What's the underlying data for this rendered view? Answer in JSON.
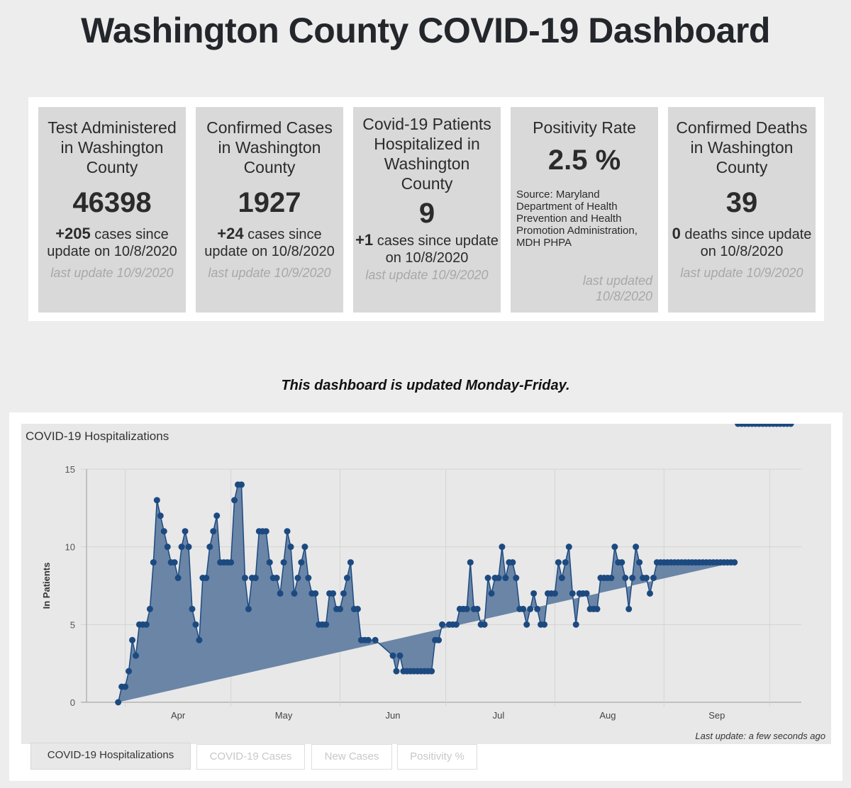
{
  "header": {
    "title": "Washington County COVID-19 Dashboard"
  },
  "cards": [
    {
      "title": "Test Administered in Washington County",
      "value": "46398",
      "delta": "+205",
      "delta_text": " cases since update on 10/8/2020",
      "updated": "last update 10/9/2020"
    },
    {
      "title": "Confirmed Cases in Washington County",
      "value": "1927",
      "delta": "+24",
      "delta_text": " cases since update on 10/8/2020",
      "updated": "last update 10/9/2020"
    },
    {
      "title": "Covid-19 Patients Hospitalized in Washington County",
      "value": "9",
      "delta": "+1",
      "delta_text": " cases since update on 10/8/2020",
      "updated": "last update 10/9/2020"
    },
    {
      "title": "Positivity Rate",
      "value": "2.5 %",
      "source": "Source: Maryland Department of Health Prevention and Health Promotion Administration, MDH PHPA",
      "updated": "last updated 10/8/2020"
    },
    {
      "title": "Confirmed Deaths in Washington County",
      "value": "39",
      "delta": "0",
      "delta_text": " deaths since update on 10/8/2020",
      "updated": "last update 10/9/2020"
    }
  ],
  "subtitle": "This dashboard is updated Monday-Friday.",
  "chart_panel": {
    "last_update": "Last update: a few seconds ago",
    "tabs": [
      {
        "label": "COVID-19 Hospitalizations",
        "active": true
      },
      {
        "label": "COVID-19 Cases",
        "active": false
      },
      {
        "label": "New Cases",
        "active": false
      },
      {
        "label": "Positivity %",
        "active": false
      }
    ]
  },
  "chart_data": {
    "type": "area",
    "title": "COVID-19 Hospitalizations",
    "xlabel": "",
    "ylabel": "In Patients",
    "ylim": [
      0,
      15
    ],
    "yticks": [
      0,
      5,
      10,
      15
    ],
    "xlim_days_since_mar1": [
      20,
      223
    ],
    "xticks": [
      {
        "label": "Apr",
        "day": 46
      },
      {
        "label": "May",
        "day": 76
      },
      {
        "label": "Jun",
        "day": 107
      },
      {
        "label": "Jul",
        "day": 137
      },
      {
        "label": "Aug",
        "day": 168
      },
      {
        "label": "Sep",
        "day": 199
      }
    ],
    "month_gridlines_days": [
      31,
      61,
      92,
      122,
      153,
      184,
      214
    ],
    "grid": true,
    "color": "#1c4a80",
    "fill": "#6a85a6",
    "series": [
      {
        "name": "In Patients",
        "x_days_since_mar1": [
          29,
          30,
          31,
          32,
          33,
          34,
          35,
          36,
          37,
          38,
          39,
          40,
          41,
          42,
          43,
          44,
          45,
          46,
          47,
          48,
          49,
          50,
          51,
          52,
          53,
          54,
          55,
          56,
          57,
          58,
          59,
          60,
          61,
          62,
          63,
          64,
          65,
          66,
          67,
          68,
          69,
          70,
          71,
          72,
          73,
          74,
          75,
          76,
          77,
          78,
          79,
          80,
          81,
          82,
          83,
          84,
          85,
          86,
          87,
          88,
          89,
          90,
          91,
          92,
          93,
          94,
          95,
          96,
          97,
          98,
          99,
          100,
          102,
          107,
          108,
          109,
          110,
          111,
          112,
          113,
          114,
          115,
          116,
          117,
          118,
          119,
          120,
          121,
          123,
          124,
          125,
          126,
          127,
          128,
          129,
          130,
          131,
          132,
          133,
          134,
          135,
          136,
          137,
          138,
          139,
          140,
          141,
          142,
          143,
          144,
          145,
          146,
          147,
          148,
          149,
          150,
          151,
          152,
          153,
          154,
          155,
          156,
          157,
          158,
          159,
          160,
          161,
          162,
          163,
          164,
          165,
          166,
          167,
          168,
          169,
          170,
          171,
          172,
          173,
          174,
          175,
          176,
          177,
          178,
          179,
          180,
          181,
          182,
          183,
          184,
          185,
          186,
          187,
          188,
          189,
          190,
          191,
          192,
          193,
          194,
          195,
          196,
          197,
          198,
          199,
          200,
          201,
          202,
          203,
          204,
          205,
          206,
          207,
          208,
          209,
          210,
          211,
          212,
          213,
          214,
          215,
          216,
          217,
          218,
          219,
          220
        ],
        "values": [
          0,
          1,
          1,
          2,
          4,
          3,
          5,
          5,
          5,
          6,
          9,
          13,
          12,
          11,
          10,
          9,
          9,
          8,
          10,
          11,
          10,
          6,
          5,
          4,
          8,
          8,
          10,
          11,
          12,
          9,
          9,
          9,
          9,
          13,
          14,
          14,
          8,
          6,
          8,
          8,
          11,
          11,
          11,
          9,
          8,
          8,
          7,
          9,
          11,
          10,
          7,
          8,
          9,
          10,
          8,
          7,
          7,
          5,
          5,
          5,
          7,
          7,
          6,
          6,
          7,
          8,
          9,
          6,
          6,
          4,
          4,
          4,
          4,
          3,
          2,
          3,
          2,
          2,
          2,
          2,
          2,
          2,
          2,
          2,
          2,
          4,
          4,
          5,
          5,
          5,
          5,
          6,
          6,
          6,
          9,
          6,
          6,
          5,
          5,
          8,
          7,
          8,
          8,
          10,
          8,
          9,
          9,
          8,
          6,
          6,
          5,
          6,
          7,
          6,
          5,
          5,
          7,
          7,
          7,
          9,
          8,
          9,
          10,
          7,
          5,
          7,
          7,
          7,
          6,
          6,
          6,
          8,
          8,
          8,
          8,
          10,
          9,
          9,
          8,
          6,
          8,
          10,
          9,
          8,
          8,
          7,
          8,
          9,
          9,
          9,
          9,
          9,
          9,
          9,
          9,
          9,
          9,
          9,
          9,
          9,
          9,
          9,
          9,
          9,
          9,
          9,
          9,
          9,
          9,
          9
        ]
      }
    ]
  }
}
